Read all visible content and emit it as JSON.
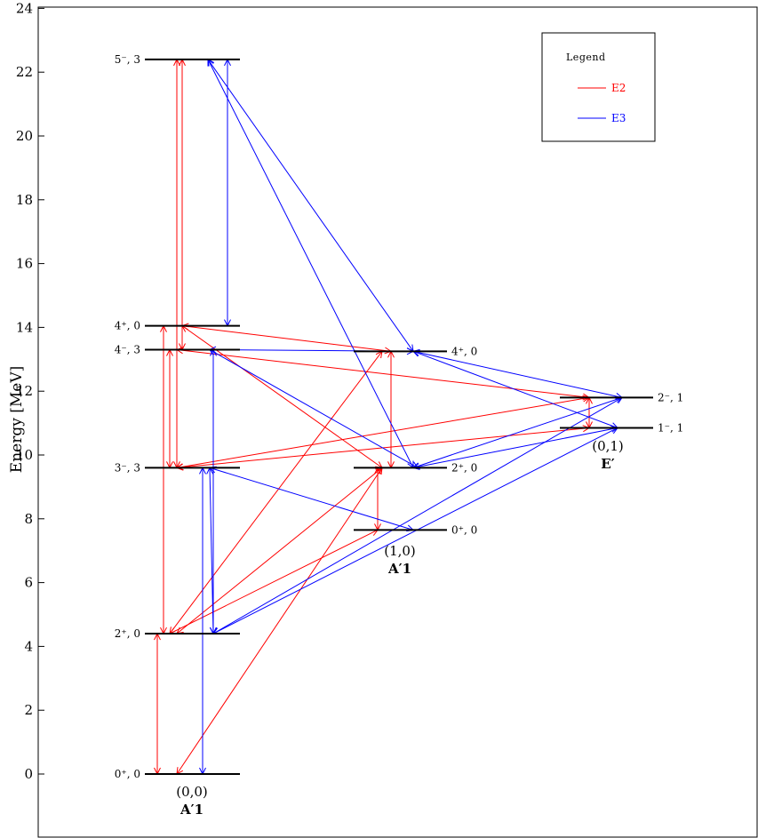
{
  "chart_data": {
    "type": "level-scheme",
    "ylabel": "Energy [MeV]",
    "ylim": [
      -2,
      24
    ],
    "yticks": [
      0,
      2,
      4,
      6,
      8,
      10,
      12,
      14,
      16,
      18,
      20,
      22,
      24
    ],
    "legend": {
      "title": "Legend",
      "placement": "top-right",
      "entries": [
        {
          "label": "E2",
          "color": "#ff0000"
        },
        {
          "label": "E3",
          "color": "#0000ff"
        }
      ]
    },
    "bands": [
      {
        "id": "b00",
        "group": "(0,0)",
        "irrep": "A′1",
        "label_side": "left",
        "levels": [
          {
            "id": "L0p",
            "label": "0⁺, 0",
            "energy": 0.0
          },
          {
            "id": "L2p",
            "label": "2⁺, 0",
            "energy": 4.4
          },
          {
            "id": "L3m",
            "label": "3⁻, 3",
            "energy": 9.6
          },
          {
            "id": "L4m",
            "label": "4⁻, 3",
            "energy": 13.3
          },
          {
            "id": "L4p",
            "label": "4⁺, 0",
            "energy": 14.05
          },
          {
            "id": "L5m",
            "label": "5⁻, 3",
            "energy": 22.4
          }
        ]
      },
      {
        "id": "b10",
        "group": "(1,0)",
        "irrep": "A′1",
        "label_side": "right",
        "levels": [
          {
            "id": "M0p",
            "label": "0⁺, 0",
            "energy": 7.65
          },
          {
            "id": "M2p",
            "label": "2⁺, 0",
            "energy": 9.6
          },
          {
            "id": "M4p",
            "label": "4⁺, 0",
            "energy": 13.25
          }
        ]
      },
      {
        "id": "b01",
        "group": "(0,1)",
        "irrep": "E′",
        "label_side": "right",
        "levels": [
          {
            "id": "R1m",
            "label": "1⁻, 1",
            "energy": 10.85
          },
          {
            "id": "R2m",
            "label": "2⁻, 1",
            "energy": 11.8
          }
        ]
      }
    ],
    "transitions": [
      {
        "type": "E2",
        "from": "L0p",
        "to": "L2p"
      },
      {
        "type": "E2",
        "from": "L0p",
        "to": "M2p"
      },
      {
        "type": "E2",
        "from": "L2p",
        "to": "L4p"
      },
      {
        "type": "E2",
        "from": "L2p",
        "to": "M0p"
      },
      {
        "type": "E2",
        "from": "L2p",
        "to": "M2p"
      },
      {
        "type": "E2",
        "from": "L2p",
        "to": "M4p"
      },
      {
        "type": "E2",
        "from": "L3m",
        "to": "L4m"
      },
      {
        "type": "E2",
        "from": "L3m",
        "to": "L5m"
      },
      {
        "type": "E2",
        "from": "L3m",
        "to": "R1m"
      },
      {
        "type": "E2",
        "from": "L3m",
        "to": "R2m"
      },
      {
        "type": "E2",
        "from": "L4m",
        "to": "L5m"
      },
      {
        "type": "E2",
        "from": "L4m",
        "to": "R2m"
      },
      {
        "type": "E2",
        "from": "L4p",
        "to": "M2p"
      },
      {
        "type": "E2",
        "from": "L4p",
        "to": "M4p"
      },
      {
        "type": "E2",
        "from": "M0p",
        "to": "M2p"
      },
      {
        "type": "E2",
        "from": "M2p",
        "to": "M4p"
      },
      {
        "type": "E2",
        "from": "R1m",
        "to": "R2m"
      },
      {
        "type": "E3",
        "from": "L0p",
        "to": "L3m"
      },
      {
        "type": "E3",
        "from": "L2p",
        "to": "L3m"
      },
      {
        "type": "E3",
        "from": "L2p",
        "to": "L4m"
      },
      {
        "type": "E3",
        "from": "L2p",
        "to": "R1m"
      },
      {
        "type": "E3",
        "from": "L2p",
        "to": "R2m"
      },
      {
        "type": "E3",
        "from": "L3m",
        "to": "M0p"
      },
      {
        "type": "E3",
        "from": "L4m",
        "to": "M2p"
      },
      {
        "type": "E3",
        "from": "L4m",
        "to": "M4p"
      },
      {
        "type": "E3",
        "from": "L4p",
        "to": "L5m"
      },
      {
        "type": "E3",
        "from": "L5m",
        "to": "M2p"
      },
      {
        "type": "E3",
        "from": "L5m",
        "to": "M4p"
      },
      {
        "type": "E3",
        "from": "M2p",
        "to": "R1m"
      },
      {
        "type": "E3",
        "from": "M2p",
        "to": "R2m"
      },
      {
        "type": "E3",
        "from": "M4p",
        "to": "R1m"
      },
      {
        "type": "E3",
        "from": "M4p",
        "to": "R2m"
      }
    ]
  }
}
